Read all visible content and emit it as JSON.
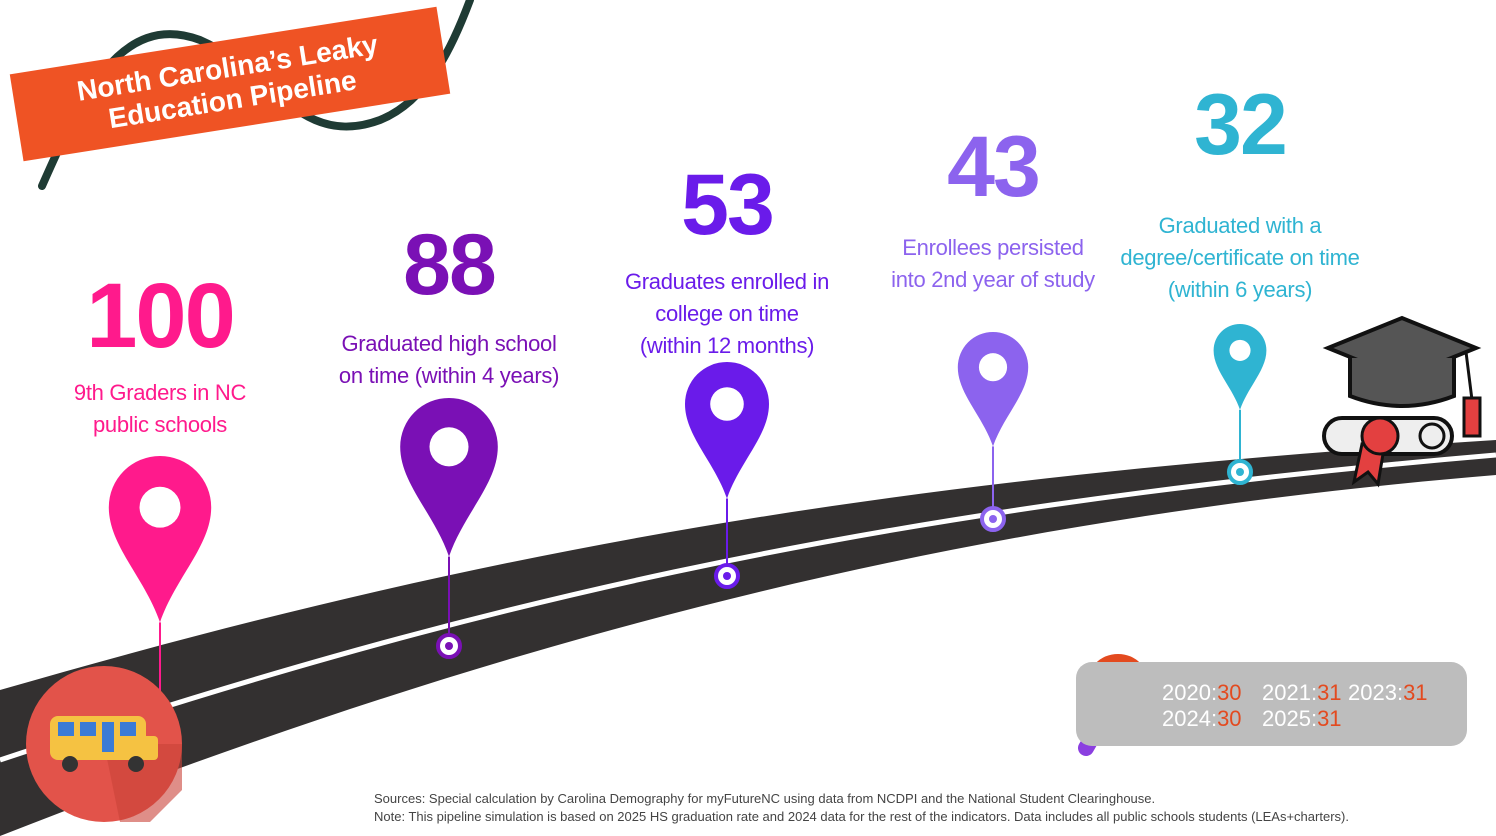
{
  "title": "North Carolina’s Leaky\nEducation Pipeline",
  "chart_data": {
    "type": "line",
    "title": "North Carolina’s Leaky Education Pipeline",
    "x": [
      1,
      2,
      3,
      4,
      5
    ],
    "values": [
      100,
      88,
      53,
      43,
      32
    ],
    "series": [
      {
        "value": 100,
        "label": "9th Graders in NC\npublic schools",
        "color": "#ff1a8c"
      },
      {
        "value": 88,
        "label": "Graduated high school\non time (within 4 years)",
        "color": "#7a10b5"
      },
      {
        "value": 53,
        "label": "Graduates enrolled in\ncollege on time\n(within 12 months)",
        "color": "#6a1bea"
      },
      {
        "value": 43,
        "label": "Enrollees persisted\ninto 2nd year of study",
        "color": "#8c63ee"
      },
      {
        "value": 32,
        "label": "Graduated with a\ndegree/certificate on time\n(within 6 years)",
        "color": "#2fb4d2"
      }
    ]
  },
  "history": [
    {
      "year": "2020:",
      "value": "30"
    },
    {
      "year": "2021:",
      "value": "31"
    },
    {
      "year": "2023:",
      "value": "31"
    },
    {
      "year": "2024:",
      "value": "30"
    },
    {
      "year": "2025:",
      "value": "31"
    }
  ],
  "notes": {
    "sources": "Sources: Special calculation by Carolina Demography for myFutureNC using data from NCDPI and the National Student Clearinghouse.",
    "note": "Note: This pipeline simulation is based on 2025 HS graduation rate and 2024 data for the rest of the indicators. Data includes all public schools students (LEAs+charters)."
  },
  "colors": {
    "banner": "#ef5324",
    "road": "#333030",
    "road_line": "#ffffff",
    "history_value": "#e34a1f",
    "bus_circle": "#e2534a"
  },
  "icons": [
    "bus-icon",
    "graduation-cap-icon",
    "diploma-icon",
    "magnifier-icon",
    "map-pin-icon"
  ]
}
